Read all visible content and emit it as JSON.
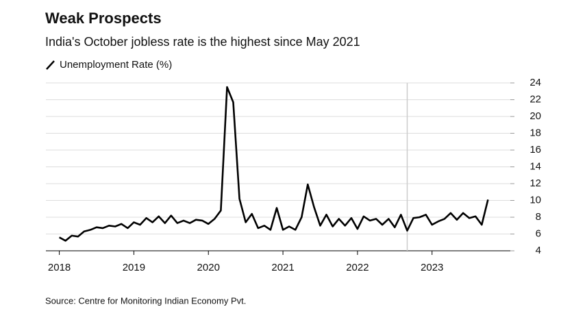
{
  "chart_data": {
    "type": "line",
    "title": "Weak Prospects",
    "subtitle": "India's October jobless rate is the highest since May 2021",
    "source": "Source: Centre for Monitoring Indian Economy Pvt.",
    "x": [
      2018,
      2018.083,
      2018.167,
      2018.25,
      2018.333,
      2018.417,
      2018.5,
      2018.583,
      2018.667,
      2018.75,
      2018.833,
      2018.917,
      2019,
      2019.083,
      2019.167,
      2019.25,
      2019.333,
      2019.417,
      2019.5,
      2019.583,
      2019.667,
      2019.75,
      2019.833,
      2019.917,
      2020,
      2020.083,
      2020.167,
      2020.25,
      2020.333,
      2020.417,
      2020.5,
      2020.583,
      2020.667,
      2020.75,
      2020.833,
      2020.917,
      2021,
      2021.083,
      2021.167,
      2021.25,
      2021.333,
      2021.417,
      2021.5,
      2021.583,
      2021.667,
      2021.75,
      2021.833,
      2021.917,
      2022,
      2022.083,
      2022.167,
      2022.25,
      2022.333,
      2022.417,
      2022.5,
      2022.583,
      2022.667,
      2022.75,
      2022.833,
      2022.917,
      2023,
      2023.083,
      2023.167,
      2023.25,
      2023.333,
      2023.417,
      2023.5,
      2023.583,
      2023.667,
      2023.75
    ],
    "series": [
      {
        "name": "Unemployment Rate (%)",
        "color": "#000000",
        "values": [
          5.6,
          5.2,
          5.8,
          5.7,
          6.3,
          6.5,
          6.8,
          6.7,
          7.0,
          6.9,
          7.2,
          6.7,
          7.4,
          7.1,
          7.9,
          7.4,
          8.1,
          7.3,
          8.2,
          7.3,
          7.6,
          7.3,
          7.7,
          7.6,
          7.2,
          7.8,
          8.8,
          23.5,
          21.7,
          10.2,
          7.4,
          8.4,
          6.7,
          7.0,
          6.5,
          9.1,
          6.5,
          6.9,
          6.5,
          8.0,
          11.9,
          9.2,
          7.0,
          8.3,
          6.9,
          7.8,
          7.0,
          7.9,
          6.6,
          8.1,
          7.6,
          7.8,
          7.1,
          7.8,
          6.8,
          8.3,
          6.4,
          7.9,
          8.0,
          8.3,
          7.1,
          7.5,
          7.8,
          8.5,
          7.7,
          8.5,
          7.9,
          8.1,
          7.1,
          10.1
        ]
      }
    ],
    "vlines": [
      2022.667
    ],
    "xlim": [
      2017.82,
      2024.05
    ],
    "xticks": [
      2018,
      2019,
      2020,
      2021,
      2022,
      2023
    ],
    "ylim": [
      4,
      24
    ],
    "yticks": [
      4,
      6,
      8,
      10,
      12,
      14,
      16,
      18,
      20,
      22,
      24
    ],
    "grid": true
  }
}
